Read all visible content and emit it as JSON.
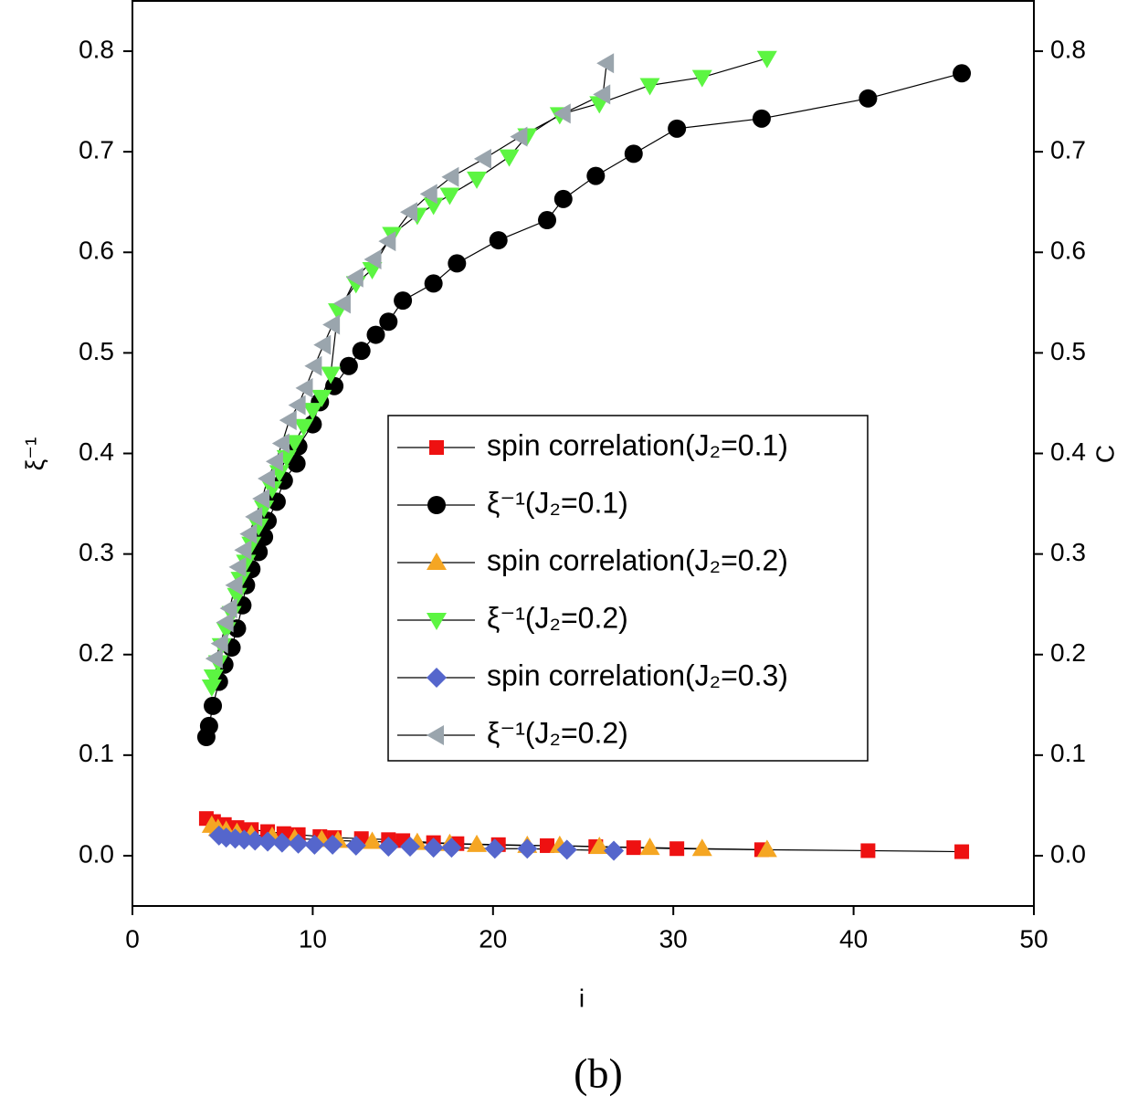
{
  "chart_data": {
    "type": "scatter",
    "caption": "(b)",
    "xlabel": "i",
    "ylabel": "ξ⁻¹",
    "y2label": "C",
    "xlim": [
      0,
      50
    ],
    "xticks": [
      0,
      10,
      20,
      30,
      40,
      50
    ],
    "ylim": [
      -0.05,
      0.85
    ],
    "yticks": [
      {
        "value": 0,
        "label": "0.0"
      },
      0.1,
      0.2,
      0.3,
      0.4,
      0.5,
      0.6,
      0.7,
      0.8
    ],
    "y2lim": [
      -0.05,
      0.85
    ],
    "y2ticks": [
      {
        "value": 0,
        "label": "0.0"
      },
      0.1,
      0.2,
      0.3,
      0.4,
      0.5,
      0.6,
      0.7,
      0.8
    ],
    "legend": "center-right",
    "series": [
      {
        "name": "spin correlation(J₂=0.1)",
        "color": "#ee1111",
        "marker": "square",
        "x": [
          4.1,
          4.5,
          5.1,
          5.8,
          6.6,
          7.5,
          8.4,
          9.2,
          10.4,
          11.2,
          12.7,
          14.2,
          15.0,
          16.7,
          18.0,
          20.3,
          23.0,
          25.7,
          27.8,
          30.2,
          34.9,
          40.8,
          46.0
        ],
        "values": [
          0.037,
          0.034,
          0.031,
          0.028,
          0.026,
          0.024,
          0.022,
          0.021,
          0.019,
          0.018,
          0.017,
          0.016,
          0.015,
          0.013,
          0.012,
          0.011,
          0.01,
          0.009,
          0.008,
          0.007,
          0.006,
          0.005,
          0.004
        ]
      },
      {
        "name": "ξ⁻¹(J₂=0.1)",
        "color": "#000000",
        "marker": "circle",
        "x": [
          4.1,
          4.25,
          4.46,
          4.8,
          5.1,
          5.5,
          5.8,
          6.1,
          6.3,
          6.6,
          7.0,
          7.3,
          7.5,
          8.0,
          8.4,
          9.1,
          9.2,
          10.0,
          10.4,
          11.2,
          12.0,
          12.7,
          13.5,
          14.2,
          15.0,
          16.7,
          18.0,
          20.3,
          23.0,
          23.9,
          25.7,
          27.8,
          30.2,
          34.9,
          40.8,
          46.0
        ],
        "values": [
          0.118,
          0.129,
          0.149,
          0.173,
          0.19,
          0.207,
          0.226,
          0.249,
          0.269,
          0.285,
          0.302,
          0.317,
          0.333,
          0.352,
          0.373,
          0.39,
          0.407,
          0.429,
          0.451,
          0.467,
          0.487,
          0.502,
          0.518,
          0.531,
          0.552,
          0.569,
          0.589,
          0.612,
          0.632,
          0.653,
          0.676,
          0.698,
          0.723,
          0.733,
          0.753,
          0.778
        ]
      },
      {
        "name": "spin correlation(J₂=0.2)",
        "color": "#f5a623",
        "marker": "triangle-up",
        "x": [
          4.4,
          4.75,
          5.2,
          5.8,
          6.6,
          7.75,
          9.0,
          10.5,
          11.4,
          13.3,
          15.8,
          17.6,
          19.1,
          21.9,
          23.7,
          25.9,
          28.7,
          31.6,
          35.2
        ],
        "values": [
          0.03,
          0.027,
          0.025,
          0.023,
          0.021,
          0.019,
          0.017,
          0.016,
          0.015,
          0.014,
          0.013,
          0.012,
          0.011,
          0.01,
          0.01,
          0.009,
          0.008,
          0.007,
          0.006
        ]
      },
      {
        "name": "ξ⁻¹(J₂=0.2)",
        "color": "#5cf542",
        "marker": "triangle-down",
        "x": [
          4.4,
          4.5,
          4.75,
          4.95,
          5.2,
          5.5,
          5.8,
          6.0,
          6.3,
          6.6,
          7.0,
          7.3,
          7.75,
          8.15,
          8.55,
          9.0,
          9.5,
          10.0,
          10.5,
          11.0,
          11.4,
          12.4,
          13.3,
          14.4,
          15.8,
          16.7,
          17.6,
          19.1,
          20.9,
          21.9,
          23.7,
          25.9,
          28.7,
          31.6,
          35.2
        ],
        "values": [
          0.168,
          0.178,
          0.192,
          0.209,
          0.225,
          0.241,
          0.259,
          0.275,
          0.292,
          0.31,
          0.328,
          0.346,
          0.365,
          0.381,
          0.396,
          0.411,
          0.427,
          0.443,
          0.456,
          0.479,
          0.542,
          0.569,
          0.583,
          0.618,
          0.637,
          0.647,
          0.657,
          0.673,
          0.695,
          0.716,
          0.737,
          0.748,
          0.766,
          0.774,
          0.793
        ]
      },
      {
        "name": "spin correlation(J₂=0.3)",
        "color": "#5566cc",
        "marker": "diamond",
        "x": [
          4.8,
          5.2,
          5.7,
          6.2,
          6.8,
          7.5,
          8.3,
          9.2,
          10.1,
          11.1,
          12.4,
          14.2,
          15.4,
          16.7,
          17.7,
          20.1,
          21.9,
          24.1,
          26.7
        ],
        "values": [
          0.02,
          0.018,
          0.017,
          0.016,
          0.015,
          0.014,
          0.013,
          0.012,
          0.011,
          0.011,
          0.01,
          0.009,
          0.009,
          0.008,
          0.008,
          0.007,
          0.007,
          0.006,
          0.005
        ]
      },
      {
        "name": "ξ⁻¹(J₂=0.2)",
        "color": "#9aa5ad",
        "marker": "triangle-left",
        "x": [
          4.6,
          4.9,
          5.2,
          5.4,
          5.7,
          5.9,
          6.2,
          6.5,
          6.8,
          7.2,
          7.5,
          7.95,
          8.3,
          8.7,
          9.2,
          9.6,
          10.1,
          10.6,
          11.1,
          11.7,
          12.4,
          13.4,
          14.2,
          15.4,
          16.5,
          17.7,
          19.5,
          21.5,
          23.9,
          26.1,
          26.3
        ],
        "values": [
          0.196,
          0.211,
          0.232,
          0.246,
          0.269,
          0.287,
          0.304,
          0.32,
          0.337,
          0.355,
          0.375,
          0.392,
          0.41,
          0.433,
          0.448,
          0.465,
          0.487,
          0.508,
          0.528,
          0.549,
          0.575,
          0.593,
          0.611,
          0.64,
          0.658,
          0.675,
          0.693,
          0.715,
          0.738,
          0.757,
          0.788
        ]
      }
    ]
  }
}
